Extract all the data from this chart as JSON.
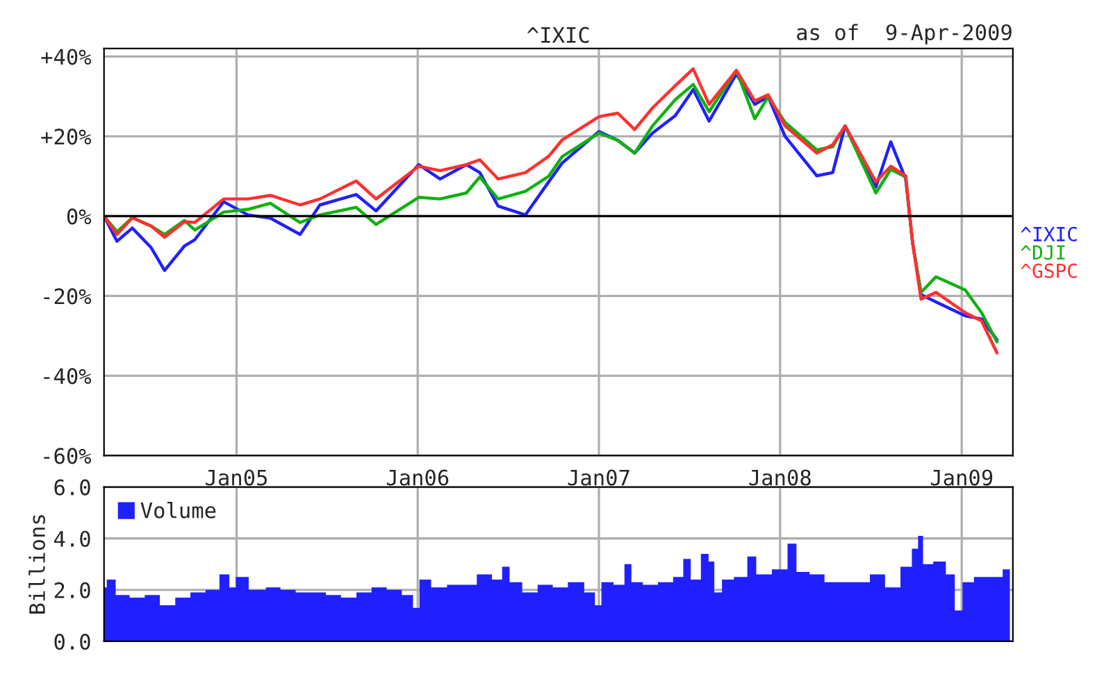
{
  "chart_data": [
    {
      "type": "line",
      "title": "^IXIC",
      "annotations": [
        "as of  9-Apr-2009"
      ],
      "grid": true,
      "legend": "right",
      "line_style": "solid",
      "marker": "none",
      "x": [
        "2004-04-09",
        "2004-05-05",
        "2004-06-05",
        "2004-07-13",
        "2004-08-09",
        "2004-09-18",
        "2004-10-09",
        "2004-12-06",
        "2005-01-24",
        "2005-03-10",
        "2005-05-09",
        "2005-06-18",
        "2005-08-30",
        "2005-10-09",
        "2006-01-03",
        "2006-02-15",
        "2006-04-09",
        "2006-05-06",
        "2006-06-12",
        "2006-08-06",
        "2006-09-22",
        "2006-10-19",
        "2007-01-01",
        "2007-02-08",
        "2007-03-14",
        "2007-04-19",
        "2007-06-04",
        "2007-07-10",
        "2007-08-11",
        "2007-10-05",
        "2007-11-11",
        "2007-12-08",
        "2008-01-11",
        "2008-03-15",
        "2008-04-16",
        "2008-05-11",
        "2008-07-12",
        "2008-08-11",
        "2008-09-10",
        "2008-09-24",
        "2008-10-11",
        "2008-11-10",
        "2009-01-08",
        "2009-02-10",
        "2009-03-13"
      ],
      "series": [
        {
          "name": "^IXIC",
          "color": "#2020ff",
          "values": [
            0,
            -6.3,
            -3.0,
            -7.9,
            -13.6,
            -7.5,
            -5.9,
            3.6,
            0.3,
            -0.5,
            -4.6,
            2.8,
            5.4,
            1.3,
            12.9,
            9.3,
            12.9,
            10.9,
            2.5,
            0.3,
            8.6,
            13.3,
            21.2,
            19.0,
            15.8,
            20.8,
            25.2,
            31.7,
            23.8,
            35.6,
            28.0,
            29.9,
            20.0,
            10.1,
            10.9,
            22.6,
            7.3,
            18.6,
            9.3,
            -6.7,
            -19.7,
            -21.5,
            -25.0,
            -25.8,
            -31.0
          ]
        },
        {
          "name": "^DJI",
          "color": "#10b010",
          "values": [
            0,
            -3.9,
            -0.4,
            -2.5,
            -4.6,
            -1.1,
            -3.5,
            1.0,
            1.7,
            3.2,
            -1.6,
            0.3,
            2.2,
            -2.1,
            4.7,
            4.3,
            5.8,
            9.8,
            4.3,
            6.2,
            10.0,
            14.9,
            20.8,
            19.0,
            15.8,
            22.6,
            29.2,
            33.0,
            26.2,
            36.5,
            24.4,
            29.9,
            23.5,
            16.6,
            17.4,
            22.6,
            5.8,
            11.7,
            9.8,
            -6.7,
            -19.1,
            -15.2,
            -18.5,
            -24.2,
            -31.5
          ]
        },
        {
          "name": "^GSPC",
          "color": "#ff3030",
          "values": [
            0,
            -4.6,
            -0.4,
            -2.5,
            -5.3,
            -1.4,
            -1.6,
            4.3,
            4.3,
            5.2,
            2.8,
            4.3,
            8.8,
            4.3,
            12.5,
            11.4,
            12.9,
            14.1,
            9.3,
            10.9,
            15.0,
            19.1,
            24.9,
            25.8,
            21.7,
            27.1,
            32.7,
            36.9,
            28.0,
            36.5,
            28.9,
            30.4,
            22.6,
            15.8,
            17.9,
            22.6,
            8.6,
            12.5,
            10.1,
            -6.7,
            -20.8,
            -19.1,
            -24.2,
            -26.3,
            -34.3
          ]
        }
      ],
      "xlim": [
        "2004-04-09",
        "2009-04-14"
      ],
      "xticks": [
        {
          "value": "2005-01-01",
          "label": "Jan05"
        },
        {
          "value": "2006-01-01",
          "label": "Jan06"
        },
        {
          "value": "2007-01-01",
          "label": "Jan07"
        },
        {
          "value": "2008-01-01",
          "label": "Jan08"
        },
        {
          "value": "2009-01-01",
          "label": "Jan09"
        }
      ],
      "ylim": [
        -60,
        42
      ],
      "yticks": [
        {
          "value": 40,
          "label": "+40%"
        },
        {
          "value": 20,
          "label": "+20%"
        },
        {
          "value": 0,
          "label": "0%"
        },
        {
          "value": -20,
          "label": "-20%"
        },
        {
          "value": -40,
          "label": "-40%"
        },
        {
          "value": -60,
          "label": "-60%"
        }
      ],
      "ref_lines": [
        {
          "axis": "y",
          "value": 0,
          "color": "#000000"
        }
      ]
    },
    {
      "type": "area",
      "ylabel": "Billions",
      "grid": true,
      "legend": "top left",
      "tick_labels": "y",
      "x": [
        "2004-04-09",
        "2004-04-20",
        "2004-05-15",
        "2004-06-15",
        "2004-07-15",
        "2004-08-15",
        "2004-09-15",
        "2004-10-15",
        "2004-11-15",
        "2004-12-10",
        "2004-12-25",
        "2005-01-05",
        "2005-02-15",
        "2005-03-15",
        "2005-04-15",
        "2005-05-15",
        "2005-06-15",
        "2005-07-15",
        "2005-08-15",
        "2005-09-15",
        "2005-10-15",
        "2005-11-15",
        "2005-12-15",
        "2005-12-30",
        "2006-01-10",
        "2006-02-15",
        "2006-03-15",
        "2006-04-15",
        "2006-05-15",
        "2006-06-15",
        "2006-06-25",
        "2006-07-15",
        "2006-08-15",
        "2006-09-15",
        "2006-10-15",
        "2006-11-15",
        "2006-12-20",
        "2006-12-28",
        "2007-01-15",
        "2007-02-15",
        "2007-02-28",
        "2007-03-15",
        "2007-04-15",
        "2007-05-15",
        "2007-06-15",
        "2007-06-25",
        "2007-07-15",
        "2007-08-05",
        "2007-08-15",
        "2007-08-28",
        "2007-09-15",
        "2007-10-15",
        "2007-11-08",
        "2007-11-20",
        "2008-01-10",
        "2008-01-22",
        "2008-02-15",
        "2008-03-15",
        "2008-04-15",
        "2008-05-15",
        "2008-06-15",
        "2008-07-15",
        "2008-08-15",
        "2008-09-15",
        "2008-09-30",
        "2008-10-10",
        "2008-10-20",
        "2008-11-20",
        "2008-12-10",
        "2008-12-26",
        "2009-01-10",
        "2009-02-10",
        "2009-03-10",
        "2009-04-08"
      ],
      "series": [
        {
          "name": "Volume",
          "color": "#2020ff",
          "values": [
            2.1,
            2.4,
            1.8,
            1.7,
            1.8,
            1.4,
            1.7,
            1.9,
            2.0,
            2.6,
            2.1,
            2.5,
            2.0,
            2.1,
            2.0,
            1.9,
            1.9,
            1.8,
            1.7,
            1.9,
            2.1,
            2.0,
            1.8,
            1.3,
            2.4,
            2.1,
            2.2,
            2.2,
            2.6,
            2.4,
            2.9,
            2.3,
            1.9,
            2.2,
            2.1,
            2.3,
            1.9,
            1.4,
            2.3,
            2.2,
            3.0,
            2.3,
            2.2,
            2.3,
            2.5,
            3.2,
            2.4,
            3.4,
            3.1,
            1.9,
            2.4,
            2.5,
            3.3,
            2.6,
            2.8,
            3.8,
            2.7,
            2.6,
            2.3,
            2.3,
            2.3,
            2.6,
            2.1,
            2.9,
            3.6,
            4.1,
            3.0,
            3.1,
            2.6,
            1.2,
            2.3,
            2.5,
            2.5,
            2.8
          ]
        }
      ],
      "xlim": [
        "2004-04-09",
        "2009-04-14"
      ],
      "xticks": [
        {
          "value": "2005-01-01",
          "label": null
        },
        {
          "value": "2006-01-01",
          "label": null
        },
        {
          "value": "2007-01-01",
          "label": null
        },
        {
          "value": "2008-01-01",
          "label": null
        },
        {
          "value": "2009-01-01",
          "label": null
        }
      ],
      "ylim": [
        0,
        6
      ],
      "yticks": [
        {
          "value": 0,
          "label": "0.0"
        },
        {
          "value": 2,
          "label": "2.0"
        },
        {
          "value": 4,
          "label": "4.0"
        },
        {
          "value": 6,
          "label": "6.0"
        }
      ]
    }
  ]
}
